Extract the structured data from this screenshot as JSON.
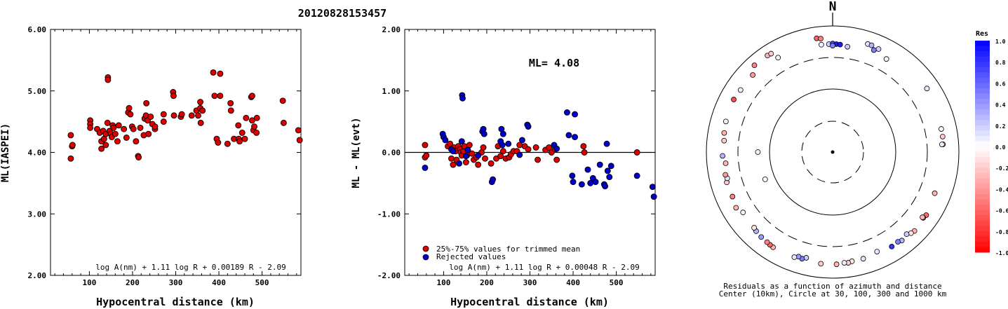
{
  "figure_title": "20120828153457",
  "chart_data": [
    {
      "type": "scatter",
      "ylabel": "ML(IASPEI)",
      "xlabel": "Hypocentral distance (km)",
      "xlim": [
        10,
        590
      ],
      "ylim": [
        2.0,
        6.0
      ],
      "x_ticks": [
        "100",
        "200",
        "300",
        "400",
        "500"
      ],
      "x_tick_values": [
        100,
        200,
        300,
        400,
        500
      ],
      "y_ticks": [
        "2.00",
        "3.00",
        "4.00",
        "5.00",
        "6.00"
      ],
      "y_tick_values": [
        2,
        3,
        4,
        5,
        6
      ],
      "formula": "log A(nm) + 1.11 log R + 0.00189 R - 2.09",
      "marker_color": "#dd0000",
      "points": [
        [
          57,
          3.9
        ],
        [
          57,
          4.28
        ],
        [
          60,
          4.1
        ],
        [
          61,
          4.12
        ],
        [
          102,
          4.52
        ],
        [
          102,
          4.46
        ],
        [
          102,
          4.4
        ],
        [
          118,
          4.38
        ],
        [
          124,
          4.32
        ],
        [
          128,
          4.06
        ],
        [
          128,
          4.18
        ],
        [
          132,
          4.35
        ],
        [
          134,
          4.22
        ],
        [
          138,
          4.12
        ],
        [
          138,
          4.3
        ],
        [
          142,
          4.48
        ],
        [
          143,
          5.22
        ],
        [
          143,
          5.18
        ],
        [
          147,
          4.35
        ],
        [
          150,
          4.3
        ],
        [
          152,
          4.25
        ],
        [
          154,
          4.44
        ],
        [
          156,
          4.4
        ],
        [
          160,
          4.3
        ],
        [
          165,
          4.18
        ],
        [
          168,
          4.44
        ],
        [
          180,
          4.38
        ],
        [
          186,
          4.24
        ],
        [
          190,
          4.65
        ],
        [
          192,
          4.72
        ],
        [
          195,
          4.62
        ],
        [
          199,
          4.42
        ],
        [
          202,
          4.38
        ],
        [
          208,
          4.18
        ],
        [
          213,
          3.94
        ],
        [
          214,
          3.92
        ],
        [
          218,
          4.4
        ],
        [
          226,
          4.28
        ],
        [
          228,
          4.55
        ],
        [
          231,
          4.6
        ],
        [
          232,
          4.8
        ],
        [
          235,
          4.52
        ],
        [
          237,
          4.3
        ],
        [
          242,
          4.58
        ],
        [
          246,
          4.46
        ],
        [
          252,
          4.38
        ],
        [
          252,
          4.42
        ],
        [
          272,
          4.62
        ],
        [
          272,
          4.5
        ],
        [
          294,
          4.98
        ],
        [
          295,
          4.92
        ],
        [
          296,
          4.6
        ],
        [
          312,
          4.58
        ],
        [
          314,
          4.62
        ],
        [
          337,
          4.6
        ],
        [
          348,
          4.68
        ],
        [
          352,
          4.6
        ],
        [
          357,
          4.72
        ],
        [
          357,
          4.82
        ],
        [
          358,
          4.48
        ],
        [
          362,
          4.68
        ],
        [
          387,
          5.3
        ],
        [
          390,
          4.92
        ],
        [
          395,
          4.22
        ],
        [
          398,
          4.16
        ],
        [
          403,
          5.28
        ],
        [
          403,
          4.92
        ],
        [
          420,
          4.14
        ],
        [
          427,
          4.8
        ],
        [
          428,
          4.68
        ],
        [
          435,
          4.22
        ],
        [
          445,
          4.44
        ],
        [
          446,
          4.22
        ],
        [
          448,
          4.18
        ],
        [
          454,
          4.32
        ],
        [
          460,
          4.22
        ],
        [
          463,
          4.56
        ],
        [
          475,
          4.9
        ],
        [
          477,
          4.92
        ],
        [
          477,
          4.52
        ],
        [
          480,
          4.36
        ],
        [
          482,
          4.42
        ],
        [
          487,
          4.32
        ],
        [
          488,
          4.56
        ],
        [
          548,
          4.84
        ],
        [
          550,
          4.48
        ],
        [
          584,
          4.36
        ],
        [
          587,
          4.2
        ]
      ]
    },
    {
      "type": "scatter",
      "ylabel": "ML - ML(evt)",
      "xlabel": "Hypocentral distance (km)",
      "xlim": [
        10,
        590
      ],
      "ylim": [
        -2.0,
        2.0
      ],
      "x_ticks": [
        "100",
        "200",
        "300",
        "400",
        "500"
      ],
      "x_tick_values": [
        100,
        200,
        300,
        400,
        500
      ],
      "y_ticks": [
        "-2.00",
        "-1.00",
        "0.00",
        "1.00",
        "2.00"
      ],
      "y_tick_values": [
        -2,
        -1,
        0,
        1,
        2
      ],
      "annotation": "ML= 4.08",
      "formula": "log A(nm) + 1.11 log R + 0.00048 R - 2.09",
      "legend": [
        "25%-75% values for trimmed mean",
        "Rejected values"
      ],
      "legend_colors": [
        "#dd0000",
        "#0000cc"
      ],
      "series": [
        {
          "name": "25%-75% values for trimmed mean",
          "color": "#dd0000",
          "points": [
            [
              57,
              -0.08
            ],
            [
              57,
              0.12
            ],
            [
              60,
              -0.05
            ],
            [
              110,
              0.1
            ],
            [
              115,
              0.14
            ],
            [
              118,
              -0.1
            ],
            [
              122,
              -0.2
            ],
            [
              124,
              0.08
            ],
            [
              128,
              0.02
            ],
            [
              130,
              -0.12
            ],
            [
              134,
              0.1
            ],
            [
              138,
              0.05
            ],
            [
              140,
              0.0
            ],
            [
              142,
              -0.05
            ],
            [
              146,
              0.02
            ],
            [
              148,
              0.1
            ],
            [
              152,
              -0.16
            ],
            [
              154,
              -0.05
            ],
            [
              158,
              0.0
            ],
            [
              160,
              0.12
            ],
            [
              166,
              -0.02
            ],
            [
              170,
              -0.12
            ],
            [
              176,
              -0.08
            ],
            [
              180,
              -0.2
            ],
            [
              188,
              0.0
            ],
            [
              192,
              0.08
            ],
            [
              196,
              -0.1
            ],
            [
              210,
              -0.18
            ],
            [
              222,
              -0.1
            ],
            [
              226,
              0.1
            ],
            [
              232,
              -0.06
            ],
            [
              238,
              0.02
            ],
            [
              244,
              -0.1
            ],
            [
              252,
              -0.08
            ],
            [
              256,
              -0.03
            ],
            [
              262,
              0.02
            ],
            [
              270,
              0.02
            ],
            [
              276,
              0.12
            ],
            [
              288,
              0.1
            ],
            [
              296,
              0.05
            ],
            [
              314,
              0.08
            ],
            [
              318,
              -0.12
            ],
            [
              336,
              0.04
            ],
            [
              344,
              0.08
            ],
            [
              350,
              0.0
            ],
            [
              358,
              0.05
            ],
            [
              362,
              -0.12
            ],
            [
              424,
              0.1
            ],
            [
              426,
              0.0
            ],
            [
              548,
              0.0
            ]
          ]
        },
        {
          "name": "Rejected values",
          "color": "#0000cc",
          "points": [
            [
              57,
              -0.25
            ],
            [
              98,
              0.3
            ],
            [
              100,
              0.25
            ],
            [
              104,
              0.2
            ],
            [
              118,
              0.05
            ],
            [
              122,
              0.02
            ],
            [
              136,
              -0.18
            ],
            [
              142,
              0.18
            ],
            [
              143,
              0.93
            ],
            [
              144,
              0.88
            ],
            [
              152,
              -0.06
            ],
            [
              156,
              0.04
            ],
            [
              180,
              -0.05
            ],
            [
              190,
              0.34
            ],
            [
              192,
              0.38
            ],
            [
              194,
              0.3
            ],
            [
              212,
              -0.48
            ],
            [
              214,
              -0.44
            ],
            [
              232,
              0.18
            ],
            [
              234,
              0.38
            ],
            [
              236,
              0.12
            ],
            [
              238,
              0.3
            ],
            [
              250,
              0.14
            ],
            [
              276,
              -0.04
            ],
            [
              282,
              0.2
            ],
            [
              294,
              0.45
            ],
            [
              296,
              0.42
            ],
            [
              356,
              0.12
            ],
            [
              362,
              0.06
            ],
            [
              386,
              0.65
            ],
            [
              390,
              0.28
            ],
            [
              398,
              -0.38
            ],
            [
              400,
              -0.48
            ],
            [
              404,
              0.62
            ],
            [
              404,
              0.25
            ],
            [
              420,
              -0.52
            ],
            [
              434,
              -0.28
            ],
            [
              440,
              -0.5
            ],
            [
              446,
              -0.42
            ],
            [
              452,
              -0.48
            ],
            [
              462,
              -0.2
            ],
            [
              472,
              -0.52
            ],
            [
              474,
              -0.55
            ],
            [
              478,
              0.14
            ],
            [
              480,
              -0.3
            ],
            [
              484,
              -0.4
            ],
            [
              488,
              -0.22
            ],
            [
              548,
              -0.38
            ],
            [
              584,
              -0.56
            ],
            [
              587,
              -0.72
            ]
          ]
        }
      ]
    },
    {
      "type": "polar-scatter",
      "north_label": "N",
      "caption_line1": "Residuals as a function of azimuth and distance",
      "caption_line2": "Center (10km), Circle at 30, 100, 300 and 1000 km",
      "colorbar_title": "Res",
      "colorbar_ticks": [
        "1.0",
        "0.8",
        "0.6",
        "0.4",
        "0.2",
        "0.0",
        "-0.2",
        "-0.4",
        "-0.6",
        "-0.8",
        "-1.0"
      ],
      "colorbar_tick_values": [
        1.0,
        0.8,
        0.6,
        0.4,
        0.2,
        0.0,
        -0.2,
        -0.4,
        -0.6,
        -0.8,
        -1.0
      ],
      "rings_km": [
        30,
        100,
        300,
        1000
      ],
      "points_az_dist_res": [
        [
          -8,
          650,
          -0.6
        ],
        [
          -6,
          630,
          -0.5
        ],
        [
          -42,
          700,
          -0.5
        ],
        [
          -34,
          690,
          -0.3
        ],
        [
          -32,
          680,
          -0.2
        ],
        [
          -6,
          500,
          0.05
        ],
        [
          -2,
          500,
          0.2
        ],
        [
          0,
          510,
          0.7
        ],
        [
          2,
          500,
          0.9
        ],
        [
          4,
          495,
          0.9
        ],
        [
          0,
          470,
          0.5
        ],
        [
          8,
          470,
          0.2
        ],
        [
          18,
          620,
          0.1
        ],
        [
          20,
          620,
          0.3
        ],
        [
          22,
          540,
          0.5
        ],
        [
          24,
          600,
          0.2
        ],
        [
          30,
          490,
          0.05
        ],
        [
          56,
          620,
          0.1
        ],
        [
          78,
          560,
          0.05
        ],
        [
          82,
          560,
          -0.2
        ],
        [
          86,
          550,
          -0.4
        ],
        [
          86,
          530,
          0.05
        ],
        [
          112,
          540,
          -0.3
        ],
        [
          124,
          600,
          -0.6
        ],
        [
          126,
          580,
          -0.5
        ],
        [
          126,
          560,
          -0.3
        ],
        [
          134,
          620,
          -0.3
        ],
        [
          136,
          600,
          -0.1
        ],
        [
          138,
          550,
          0.2
        ],
        [
          142,
          590,
          0.3
        ],
        [
          144,
          560,
          0.5
        ],
        [
          148,
          570,
          0.8
        ],
        [
          156,
          520,
          0.1
        ],
        [
          164,
          560,
          0.1
        ],
        [
          170,
          560,
          -0.1
        ],
        [
          172,
          580,
          -0.2
        ],
        [
          174,
          570,
          0.05
        ],
        [
          178,
          590,
          -0.3
        ],
        [
          186,
          590,
          -0.2
        ],
        [
          194,
          520,
          0.2
        ],
        [
          196,
          560,
          0.5
        ],
        [
          198,
          540,
          0.4
        ],
        [
          200,
          580,
          0.1
        ],
        [
          212,
          590,
          -0.3
        ],
        [
          214,
          580,
          -0.6
        ],
        [
          216,
          570,
          -0.5
        ],
        [
          220,
          560,
          0.4
        ],
        [
          224,
          540,
          0.3
        ],
        [
          226,
          520,
          -0.1
        ],
        [
          236,
          500,
          0.05
        ],
        [
          240,
          570,
          -0.3
        ],
        [
          246,
          530,
          -0.5
        ],
        [
          254,
          540,
          -0.2
        ],
        [
          256,
          510,
          0.1
        ],
        [
          258,
          530,
          -0.4
        ],
        [
          264,
          490,
          -0.3
        ],
        [
          268,
          540,
          0.3
        ],
        [
          276,
          520,
          -0.2
        ],
        [
          280,
          540,
          -0.3
        ],
        [
          286,
          560,
          0.05
        ],
        [
          298,
          580,
          -0.7
        ],
        [
          304,
          560,
          0.05
        ],
        [
          314,
          560,
          -0.4
        ],
        [
          330,
          520,
          0.05
        ],
        [
          270,
          150,
          0.05
        ],
        [
          248,
          140,
          0.0
        ]
      ]
    }
  ]
}
